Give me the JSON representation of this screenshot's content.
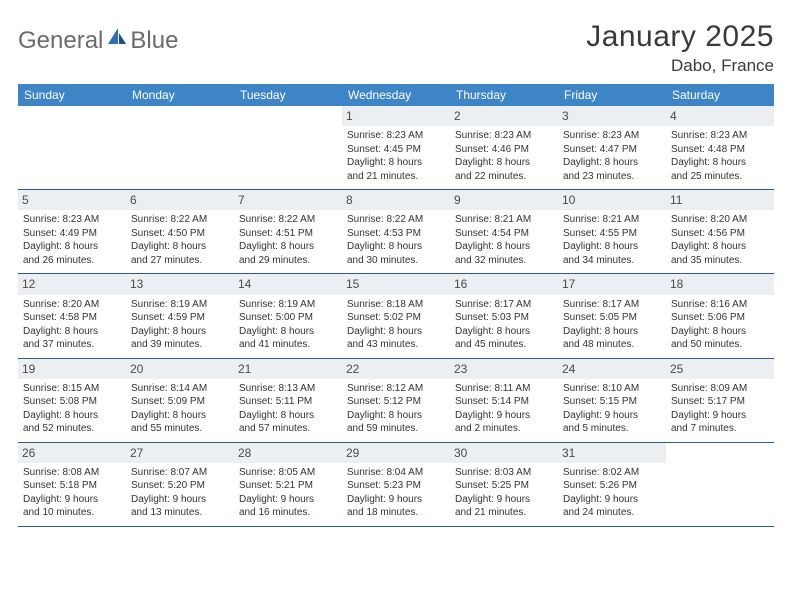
{
  "brand": {
    "text1": "General",
    "text2": "Blue"
  },
  "title": "January 2025",
  "location": "Dabo, France",
  "colors": {
    "header_bg": "#3d85c6",
    "header_text": "#ffffff",
    "daynum_bg": "#eceff2",
    "row_border": "#2e5b95",
    "logo_gray": "#6b6b6b",
    "logo_blue": "#2e6fb4"
  },
  "day_headers": [
    "Sunday",
    "Monday",
    "Tuesday",
    "Wednesday",
    "Thursday",
    "Friday",
    "Saturday"
  ],
  "weeks": [
    [
      null,
      null,
      null,
      {
        "n": "1",
        "sr": "Sunrise: 8:23 AM",
        "ss": "Sunset: 4:45 PM",
        "d1": "Daylight: 8 hours",
        "d2": "and 21 minutes."
      },
      {
        "n": "2",
        "sr": "Sunrise: 8:23 AM",
        "ss": "Sunset: 4:46 PM",
        "d1": "Daylight: 8 hours",
        "d2": "and 22 minutes."
      },
      {
        "n": "3",
        "sr": "Sunrise: 8:23 AM",
        "ss": "Sunset: 4:47 PM",
        "d1": "Daylight: 8 hours",
        "d2": "and 23 minutes."
      },
      {
        "n": "4",
        "sr": "Sunrise: 8:23 AM",
        "ss": "Sunset: 4:48 PM",
        "d1": "Daylight: 8 hours",
        "d2": "and 25 minutes."
      }
    ],
    [
      {
        "n": "5",
        "sr": "Sunrise: 8:23 AM",
        "ss": "Sunset: 4:49 PM",
        "d1": "Daylight: 8 hours",
        "d2": "and 26 minutes."
      },
      {
        "n": "6",
        "sr": "Sunrise: 8:22 AM",
        "ss": "Sunset: 4:50 PM",
        "d1": "Daylight: 8 hours",
        "d2": "and 27 minutes."
      },
      {
        "n": "7",
        "sr": "Sunrise: 8:22 AM",
        "ss": "Sunset: 4:51 PM",
        "d1": "Daylight: 8 hours",
        "d2": "and 29 minutes."
      },
      {
        "n": "8",
        "sr": "Sunrise: 8:22 AM",
        "ss": "Sunset: 4:53 PM",
        "d1": "Daylight: 8 hours",
        "d2": "and 30 minutes."
      },
      {
        "n": "9",
        "sr": "Sunrise: 8:21 AM",
        "ss": "Sunset: 4:54 PM",
        "d1": "Daylight: 8 hours",
        "d2": "and 32 minutes."
      },
      {
        "n": "10",
        "sr": "Sunrise: 8:21 AM",
        "ss": "Sunset: 4:55 PM",
        "d1": "Daylight: 8 hours",
        "d2": "and 34 minutes."
      },
      {
        "n": "11",
        "sr": "Sunrise: 8:20 AM",
        "ss": "Sunset: 4:56 PM",
        "d1": "Daylight: 8 hours",
        "d2": "and 35 minutes."
      }
    ],
    [
      {
        "n": "12",
        "sr": "Sunrise: 8:20 AM",
        "ss": "Sunset: 4:58 PM",
        "d1": "Daylight: 8 hours",
        "d2": "and 37 minutes."
      },
      {
        "n": "13",
        "sr": "Sunrise: 8:19 AM",
        "ss": "Sunset: 4:59 PM",
        "d1": "Daylight: 8 hours",
        "d2": "and 39 minutes."
      },
      {
        "n": "14",
        "sr": "Sunrise: 8:19 AM",
        "ss": "Sunset: 5:00 PM",
        "d1": "Daylight: 8 hours",
        "d2": "and 41 minutes."
      },
      {
        "n": "15",
        "sr": "Sunrise: 8:18 AM",
        "ss": "Sunset: 5:02 PM",
        "d1": "Daylight: 8 hours",
        "d2": "and 43 minutes."
      },
      {
        "n": "16",
        "sr": "Sunrise: 8:17 AM",
        "ss": "Sunset: 5:03 PM",
        "d1": "Daylight: 8 hours",
        "d2": "and 45 minutes."
      },
      {
        "n": "17",
        "sr": "Sunrise: 8:17 AM",
        "ss": "Sunset: 5:05 PM",
        "d1": "Daylight: 8 hours",
        "d2": "and 48 minutes."
      },
      {
        "n": "18",
        "sr": "Sunrise: 8:16 AM",
        "ss": "Sunset: 5:06 PM",
        "d1": "Daylight: 8 hours",
        "d2": "and 50 minutes."
      }
    ],
    [
      {
        "n": "19",
        "sr": "Sunrise: 8:15 AM",
        "ss": "Sunset: 5:08 PM",
        "d1": "Daylight: 8 hours",
        "d2": "and 52 minutes."
      },
      {
        "n": "20",
        "sr": "Sunrise: 8:14 AM",
        "ss": "Sunset: 5:09 PM",
        "d1": "Daylight: 8 hours",
        "d2": "and 55 minutes."
      },
      {
        "n": "21",
        "sr": "Sunrise: 8:13 AM",
        "ss": "Sunset: 5:11 PM",
        "d1": "Daylight: 8 hours",
        "d2": "and 57 minutes."
      },
      {
        "n": "22",
        "sr": "Sunrise: 8:12 AM",
        "ss": "Sunset: 5:12 PM",
        "d1": "Daylight: 8 hours",
        "d2": "and 59 minutes."
      },
      {
        "n": "23",
        "sr": "Sunrise: 8:11 AM",
        "ss": "Sunset: 5:14 PM",
        "d1": "Daylight: 9 hours",
        "d2": "and 2 minutes."
      },
      {
        "n": "24",
        "sr": "Sunrise: 8:10 AM",
        "ss": "Sunset: 5:15 PM",
        "d1": "Daylight: 9 hours",
        "d2": "and 5 minutes."
      },
      {
        "n": "25",
        "sr": "Sunrise: 8:09 AM",
        "ss": "Sunset: 5:17 PM",
        "d1": "Daylight: 9 hours",
        "d2": "and 7 minutes."
      }
    ],
    [
      {
        "n": "26",
        "sr": "Sunrise: 8:08 AM",
        "ss": "Sunset: 5:18 PM",
        "d1": "Daylight: 9 hours",
        "d2": "and 10 minutes."
      },
      {
        "n": "27",
        "sr": "Sunrise: 8:07 AM",
        "ss": "Sunset: 5:20 PM",
        "d1": "Daylight: 9 hours",
        "d2": "and 13 minutes."
      },
      {
        "n": "28",
        "sr": "Sunrise: 8:05 AM",
        "ss": "Sunset: 5:21 PM",
        "d1": "Daylight: 9 hours",
        "d2": "and 16 minutes."
      },
      {
        "n": "29",
        "sr": "Sunrise: 8:04 AM",
        "ss": "Sunset: 5:23 PM",
        "d1": "Daylight: 9 hours",
        "d2": "and 18 minutes."
      },
      {
        "n": "30",
        "sr": "Sunrise: 8:03 AM",
        "ss": "Sunset: 5:25 PM",
        "d1": "Daylight: 9 hours",
        "d2": "and 21 minutes."
      },
      {
        "n": "31",
        "sr": "Sunrise: 8:02 AM",
        "ss": "Sunset: 5:26 PM",
        "d1": "Daylight: 9 hours",
        "d2": "and 24 minutes."
      },
      null
    ]
  ]
}
